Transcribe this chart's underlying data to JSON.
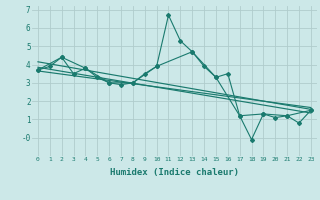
{
  "bg_color": "#cce8e8",
  "grid_color": "#b8d8d8",
  "line_color": "#1a7a6e",
  "xlabel": "Humidex (Indice chaleur)",
  "ylim": [
    -1.0,
    7.2
  ],
  "xlim": [
    -0.5,
    23.5
  ],
  "yticks": [
    0,
    1,
    2,
    3,
    4,
    5,
    6,
    7
  ],
  "ytick_labels": [
    "-0",
    "1",
    "2",
    "3",
    "4",
    "5",
    "6",
    "7"
  ],
  "xticks": [
    0,
    1,
    2,
    3,
    4,
    5,
    6,
    7,
    8,
    9,
    10,
    11,
    12,
    13,
    14,
    15,
    16,
    17,
    18,
    19,
    20,
    21,
    22,
    23
  ],
  "series1": {
    "x": [
      0,
      1,
      2,
      3,
      4,
      5,
      6,
      7,
      8,
      9,
      10,
      11,
      12,
      13,
      14,
      15,
      16,
      17,
      18,
      19,
      20,
      21,
      22,
      23
    ],
    "y": [
      3.7,
      3.9,
      4.4,
      3.5,
      3.8,
      3.3,
      3.0,
      2.9,
      3.0,
      3.5,
      3.9,
      6.7,
      5.3,
      4.7,
      3.9,
      3.3,
      3.5,
      1.2,
      -0.1,
      1.3,
      1.1,
      1.2,
      0.8,
      1.5
    ]
  },
  "series2": {
    "x": [
      0,
      2,
      4,
      6,
      8,
      10,
      13,
      15,
      17,
      19,
      21,
      23
    ],
    "y": [
      3.7,
      4.4,
      3.8,
      3.0,
      3.0,
      3.9,
      4.7,
      3.3,
      1.2,
      1.3,
      1.2,
      1.5
    ]
  },
  "trend1": {
    "x": [
      0,
      23
    ],
    "y": [
      4.15,
      1.55
    ]
  },
  "trend2": {
    "x": [
      0,
      23
    ],
    "y": [
      3.85,
      1.35
    ]
  },
  "trend3": {
    "x": [
      0,
      23
    ],
    "y": [
      3.65,
      1.65
    ]
  }
}
